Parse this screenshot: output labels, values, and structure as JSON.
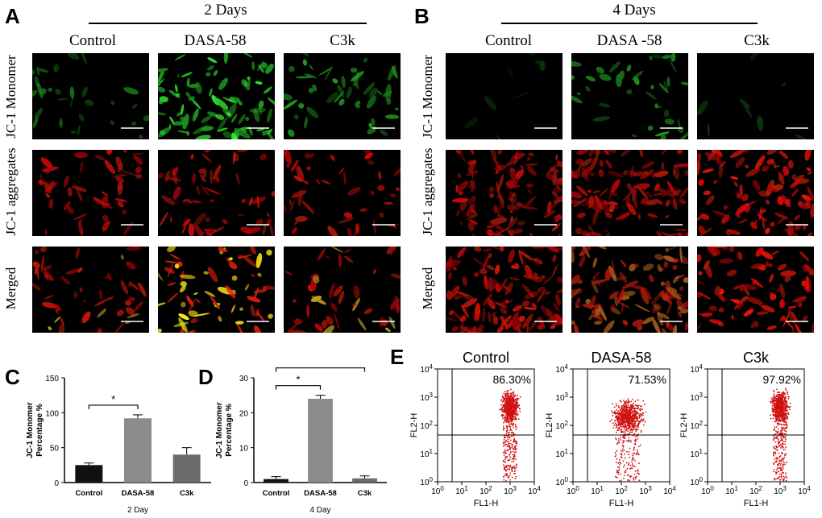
{
  "panels": {
    "A": {
      "label": "A",
      "header": "2 Days",
      "columns": [
        "Control",
        "DASA-58",
        "C3k"
      ],
      "rows": [
        "JC-1 Monomer",
        "JC-1 aggregates",
        "Merged"
      ]
    },
    "B": {
      "label": "B",
      "header": "4 Days",
      "columns": [
        "Control",
        "DASA -58",
        "C3k"
      ],
      "rows": [
        "JC-1 Monomer",
        "JC-1 aggregates",
        "Merged"
      ]
    },
    "C": {
      "label": "C"
    },
    "D": {
      "label": "D"
    },
    "E": {
      "label": "E",
      "plots": [
        {
          "title": "Control",
          "percent": "86.30%"
        },
        {
          "title": "DASA-58",
          "percent": "71.53%"
        },
        {
          "title": "C3k",
          "percent": "97.92%"
        }
      ],
      "xlabel": "FL1-H",
      "ylabel": "FL2-H"
    }
  },
  "chart_data": [
    {
      "type": "bar",
      "categories": [
        "Control",
        "DASA-58",
        "C3k"
      ],
      "values": [
        25,
        92,
        40
      ],
      "errors": [
        3,
        5,
        10
      ],
      "colors": [
        "#111111",
        "#8c8c8c",
        "#6b6b6b"
      ],
      "ylabel": "JC-1 Monomer Percentage %",
      "xlabel": "2 Day",
      "ylim": [
        0,
        150
      ],
      "yticks": [
        "0",
        "50",
        "100",
        "150"
      ],
      "significance": [
        {
          "from": "Control",
          "to": "DASA-58",
          "label": "*"
        }
      ]
    },
    {
      "type": "bar",
      "categories": [
        "Control",
        "DASA-58",
        "C3k"
      ],
      "values": [
        1,
        24,
        1.2
      ],
      "errors": [
        0.7,
        1,
        0.7
      ],
      "colors": [
        "#111111",
        "#8c8c8c",
        "#6b6b6b"
      ],
      "ylabel": "JC-1 Monomer Percentage %",
      "xlabel": "4 Day",
      "ylim": [
        0,
        30
      ],
      "yticks": [
        "0",
        "10",
        "20",
        "30"
      ],
      "significance": [
        {
          "from": "Control",
          "to": "DASA-58",
          "label": "*"
        },
        {
          "from": "Control",
          "to": "C3k",
          "label": "*"
        }
      ]
    }
  ]
}
